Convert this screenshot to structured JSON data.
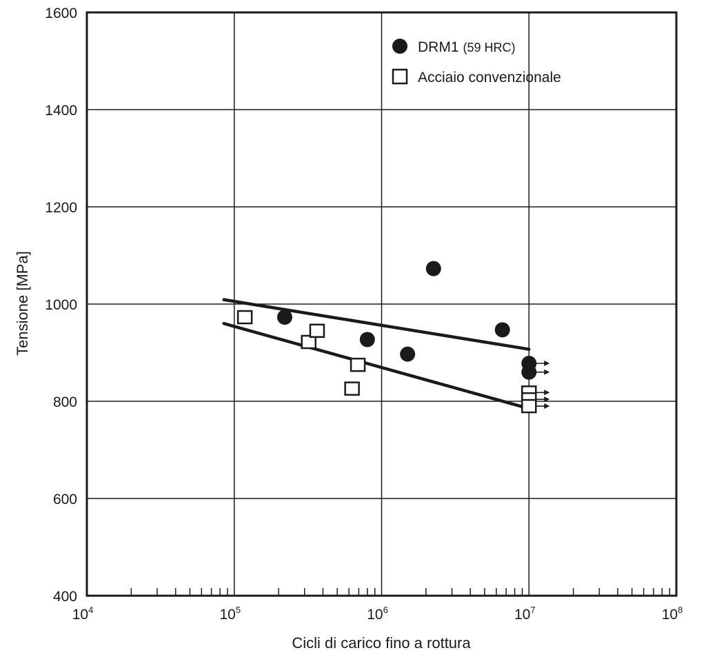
{
  "chart_data": {
    "type": "scatter",
    "xlabel": "Cicli di carico fino a rottura",
    "ylabel": "Tensione [MPa]",
    "x_scale": "log",
    "xlim": [
      10000,
      100000000
    ],
    "ylim": [
      400,
      1600
    ],
    "x_ticks": [
      {
        "base": "10",
        "exp": "4"
      },
      {
        "base": "10",
        "exp": "5"
      },
      {
        "base": "10",
        "exp": "6"
      },
      {
        "base": "10",
        "exp": "7"
      },
      {
        "base": "10",
        "exp": "8"
      }
    ],
    "y_ticks": [
      "400",
      "600",
      "800",
      "1000",
      "1200",
      "1400",
      "1600"
    ],
    "grid": true,
    "legend_position": "top-right",
    "series": [
      {
        "name": "DRM1",
        "name_suffix": "(59 HRC)",
        "marker": "filled-circle",
        "color": "#1a1a1a",
        "points": [
          {
            "x": 220000,
            "y": 973
          },
          {
            "x": 800000,
            "y": 927
          },
          {
            "x": 1500000,
            "y": 897
          },
          {
            "x": 2250000,
            "y": 1073
          },
          {
            "x": 6600000,
            "y": 947
          },
          {
            "x": 10000000,
            "y": 878,
            "runout": true
          },
          {
            "x": 10000000,
            "y": 860,
            "runout": true
          }
        ],
        "trendline": {
          "x": [
            85000,
            10000000
          ],
          "y": [
            1009,
            907
          ]
        }
      },
      {
        "name": "Acciaio convenzionale",
        "marker": "open-square",
        "color": "#1a1a1a",
        "points": [
          {
            "x": 118000,
            "y": 973
          },
          {
            "x": 320000,
            "y": 922
          },
          {
            "x": 365000,
            "y": 945
          },
          {
            "x": 630000,
            "y": 826
          },
          {
            "x": 690000,
            "y": 875
          },
          {
            "x": 10000000,
            "y": 818,
            "runout": true
          },
          {
            "x": 10000000,
            "y": 804,
            "runout": true
          },
          {
            "x": 10000000,
            "y": 790,
            "runout": true
          }
        ],
        "trendline": {
          "x": [
            85000,
            10000000
          ],
          "y": [
            960,
            785
          ]
        }
      }
    ]
  }
}
